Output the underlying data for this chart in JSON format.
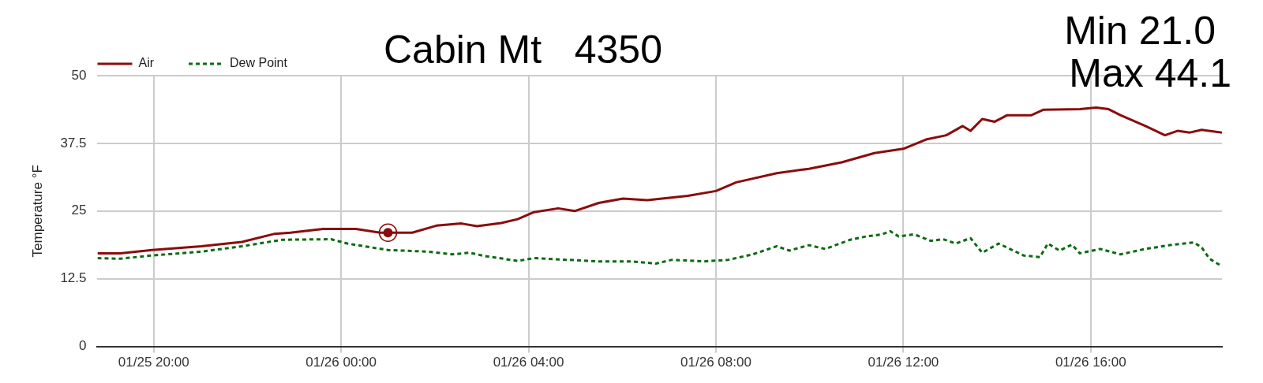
{
  "chart_data": {
    "type": "line",
    "title": "Cabin Mt   4350",
    "ylabel": "Temperature °F",
    "annotations": [
      "Min 21.0",
      "Max 44.1"
    ],
    "xlim": [
      "--01-25T18:48",
      "--01-26T18:48"
    ],
    "xticks": [
      {
        "value": "--01-25T20:00",
        "label": "01/25 20:00"
      },
      {
        "value": "--01-26T00:00",
        "label": "01/26 00:00"
      },
      {
        "value": "--01-26T04:00",
        "label": "01/26 04:00"
      },
      {
        "value": "--01-26T08:00",
        "label": "01/26 08:00"
      },
      {
        "value": "--01-26T12:00",
        "label": "01/26 12:00"
      },
      {
        "value": "--01-26T16:00",
        "label": "01/26 16:00"
      }
    ],
    "ylim": [
      0,
      50
    ],
    "yticks": [
      0,
      12.5,
      25,
      37.5,
      50
    ],
    "grid": true,
    "legend": "top left",
    "series": [
      {
        "name": "Air",
        "color": "#8b0c0c",
        "line_style": "solid",
        "marker": "none",
        "x": [
          "--01-25T18:48",
          "--01-25T19:17",
          "--01-25T19:58",
          "--01-25T21:01",
          "--01-25T21:53",
          "--01-25T22:35",
          "--01-25T22:55",
          "--01-25T23:37",
          "--01-26T00:19",
          "--01-26T00:50",
          "--01-26T01:00",
          "--01-26T01:31",
          "--01-26T02:02",
          "--01-26T02:34",
          "--01-26T02:54",
          "--01-26T03:25",
          "--01-26T03:46",
          "--01-26T04:07",
          "--01-26T04:38",
          "--01-26T04:59",
          "--01-26T05:30",
          "--01-26T06:01",
          "--01-26T06:32",
          "--01-26T07:24",
          "--01-26T08:00",
          "--01-26T08:26",
          "--01-26T09:18",
          "--01-26T09:59",
          "--01-26T10:41",
          "--01-26T11:23",
          "--01-26T12:00",
          "--01-26T12:29",
          "--01-26T12:55",
          "--01-26T13:16",
          "--01-26T13:26",
          "--01-26T13:41",
          "--01-26T13:57",
          "--01-26T14:13",
          "--01-26T14:44",
          "--01-26T14:59",
          "--01-26T15:46",
          "--01-26T16:07",
          "--01-26T16:23",
          "--01-26T16:38",
          "--01-26T17:10",
          "--01-26T17:35",
          "--01-26T17:51",
          "--01-26T18:07",
          "--01-26T18:22",
          "--01-26T18:48"
        ],
        "values": [
          17.2,
          17.2,
          17.8,
          18.5,
          19.3,
          20.8,
          21.0,
          21.7,
          21.7,
          21.0,
          21.0,
          21.0,
          22.3,
          22.7,
          22.2,
          22.8,
          23.5,
          24.8,
          25.5,
          25.0,
          26.5,
          27.3,
          27.0,
          27.8,
          28.7,
          30.3,
          32.0,
          32.8,
          34.0,
          35.7,
          36.5,
          38.2,
          39.0,
          40.7,
          39.8,
          42.0,
          41.5,
          42.7,
          42.7,
          43.7,
          43.8,
          44.1,
          43.8,
          42.7,
          40.7,
          39.0,
          39.8,
          39.5,
          40.0,
          39.5
        ]
      },
      {
        "name": "Dew Point",
        "color": "#0b6b12",
        "line_style": "dashed",
        "marker": "none",
        "x": [
          "--01-25T18:48",
          "--01-25T19:17",
          "--01-25T19:58",
          "--01-25T21:01",
          "--01-25T21:53",
          "--01-25T22:45",
          "--01-25T23:47",
          "--01-26T00:08",
          "--01-26T01:00",
          "--01-26T01:52",
          "--01-26T02:23",
          "--01-26T02:44",
          "--01-26T03:04",
          "--01-26T03:46",
          "--01-26T04:07",
          "--01-26T04:49",
          "--01-26T05:30",
          "--01-26T06:11",
          "--01-26T06:43",
          "--01-26T07:04",
          "--01-26T07:45",
          "--01-26T08:16",
          "--01-26T08:47",
          "--01-26T09:18",
          "--01-26T09:34",
          "--01-26T09:59",
          "--01-26T10:20",
          "--01-26T10:52",
          "--01-26T11:12",
          "--01-26T11:33",
          "--01-26T11:43",
          "--01-26T11:54",
          "--01-26T12:14",
          "--01-26T12:35",
          "--01-26T12:51",
          "--01-26T13:07",
          "--01-26T13:26",
          "--01-26T13:41",
          "--01-26T14:02",
          "--01-26T14:34",
          "--01-26T14:55",
          "--01-26T15:05",
          "--01-26T15:20",
          "--01-26T15:36",
          "--01-26T15:46",
          "--01-26T16:12",
          "--01-26T16:38",
          "--01-26T17:10",
          "--01-26T17:41",
          "--01-26T18:12",
          "--01-26T18:22",
          "--01-26T18:32",
          "--01-26T18:48"
        ],
        "values": [
          16.3,
          16.2,
          16.8,
          17.5,
          18.5,
          19.7,
          19.8,
          19.0,
          17.8,
          17.5,
          17.0,
          17.3,
          16.7,
          15.8,
          16.3,
          16.0,
          15.7,
          15.7,
          15.3,
          16.0,
          15.7,
          16.0,
          17.0,
          18.5,
          17.7,
          18.7,
          18.0,
          19.7,
          20.3,
          20.7,
          21.3,
          20.3,
          20.7,
          19.5,
          19.8,
          19.0,
          20.0,
          17.3,
          19.0,
          16.8,
          16.5,
          19.0,
          17.7,
          18.8,
          17.2,
          18.0,
          17.0,
          18.0,
          18.7,
          19.2,
          18.3,
          16.2,
          14.8
        ]
      },
      {
        "type": "scatter",
        "color": "#8b0c0c",
        "marker": "circle",
        "x": [
          "--01-26T01:00"
        ],
        "values": [
          21.0
        ]
      }
    ]
  }
}
